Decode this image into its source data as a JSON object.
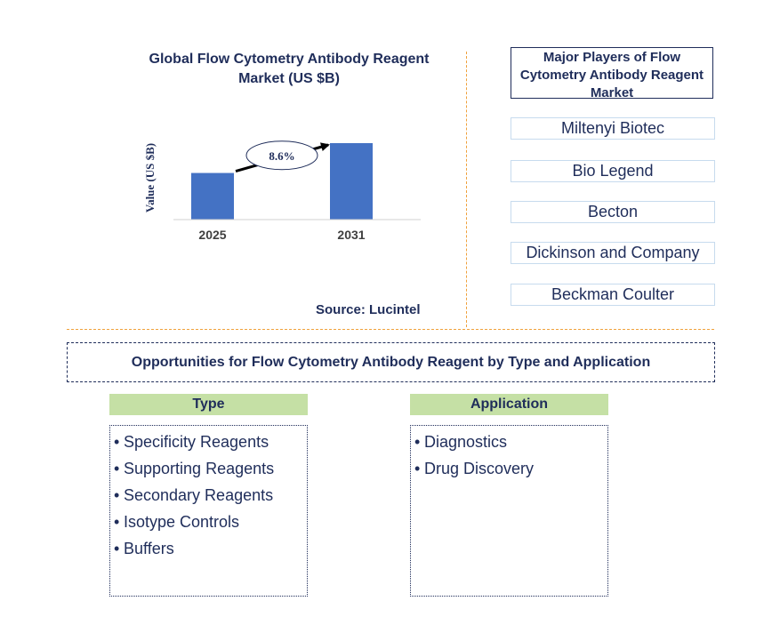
{
  "chart_data": {
    "type": "bar",
    "title": "Global Flow Cytometry Antibody Reagent Market (US $B)",
    "ylabel": "Value (US $B)",
    "xlabel": "",
    "categories": [
      "2025",
      "2031"
    ],
    "values": [
      1.0,
      1.64
    ],
    "annotation": {
      "label": "8.6%",
      "kind": "cagr-arrow",
      "from": "2025",
      "to": "2031"
    },
    "bar_color": "#4472c4",
    "grid": false
  },
  "source": "Source: Lucintel",
  "players": {
    "title": "Major Players of Flow Cytometry Antibody Reagent Market",
    "items": [
      "Miltenyi Biotec",
      "Bio Legend",
      "Becton",
      "Dickinson and Company",
      "Beckman Coulter"
    ]
  },
  "opportunities": {
    "title": "Opportunities for Flow Cytometry Antibody Reagent by Type and Application",
    "bullet": "•",
    "type": {
      "header": "Type",
      "items": [
        "Specificity Reagents",
        "Supporting Reagents",
        "Secondary Reagents",
        "Isotype Controls",
        "Buffers"
      ]
    },
    "application": {
      "header": "Application",
      "items": [
        "Diagnostics",
        "Drug Discovery"
      ]
    }
  },
  "colors": {
    "header_bg": "#c5e0a5",
    "text": "#1f2d5a",
    "divider": "#f0a13c",
    "bar": "#4472c4"
  }
}
